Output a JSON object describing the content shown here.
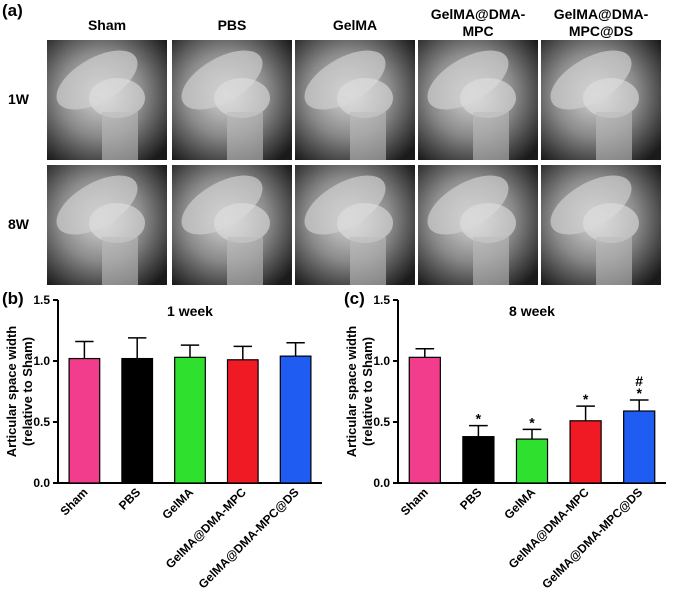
{
  "panel_a": {
    "label": "(a)",
    "columns": [
      [
        "Sham"
      ],
      [
        "PBS"
      ],
      [
        "GelMA"
      ],
      [
        "GelMA@DMA-",
        "MPC"
      ],
      [
        "GelMA@DMA-",
        "MPC@DS"
      ]
    ],
    "rows": [
      "1W",
      "8W"
    ]
  },
  "chart_data": [
    {
      "type": "bar",
      "panel_label": "(b)",
      "title": "1 week",
      "y_label": [
        "Articular space width",
        "(relative to Sham)"
      ],
      "categories": [
        "Sham",
        "PBS",
        "GelMA",
        "GelMA@DMA-MPC",
        "GelMA@DMA-MPC@DS"
      ],
      "values": [
        1.02,
        1.02,
        1.03,
        1.01,
        1.04
      ],
      "errors": [
        0.14,
        0.17,
        0.1,
        0.11,
        0.11
      ],
      "colors": [
        "#f23d8c",
        "#000000",
        "#2fe02f",
        "#f01a24",
        "#1f5df2"
      ],
      "ylim": [
        0,
        1.5
      ],
      "yticks": [
        {
          "value": 0,
          "label": "0.0"
        },
        0.5,
        {
          "value": 1,
          "label": "1.0"
        },
        1.5
      ]
    },
    {
      "type": "bar",
      "panel_label": "(c)",
      "title": "8 week",
      "y_label": [
        "Articular space width",
        "(relative to Sham)"
      ],
      "categories": [
        "Sham",
        "PBS",
        "GelMA",
        "GelMA@DMA-MPC",
        "GelMA@DMA-MPC@DS"
      ],
      "values": [
        1.03,
        0.38,
        0.36,
        0.51,
        0.59
      ],
      "errors": [
        0.07,
        0.09,
        0.08,
        0.12,
        0.09
      ],
      "colors": [
        "#f23d8c",
        "#000000",
        "#2fe02f",
        "#f01a24",
        "#1f5df2"
      ],
      "markers": [
        [],
        [
          "*"
        ],
        [
          "*"
        ],
        [
          "*"
        ],
        [
          "#",
          "*"
        ]
      ],
      "ylim": [
        0,
        1.5
      ],
      "yticks": [
        {
          "value": 0,
          "label": "0.0"
        },
        0.5,
        {
          "value": 1,
          "label": "1.0"
        },
        1.5
      ]
    }
  ]
}
